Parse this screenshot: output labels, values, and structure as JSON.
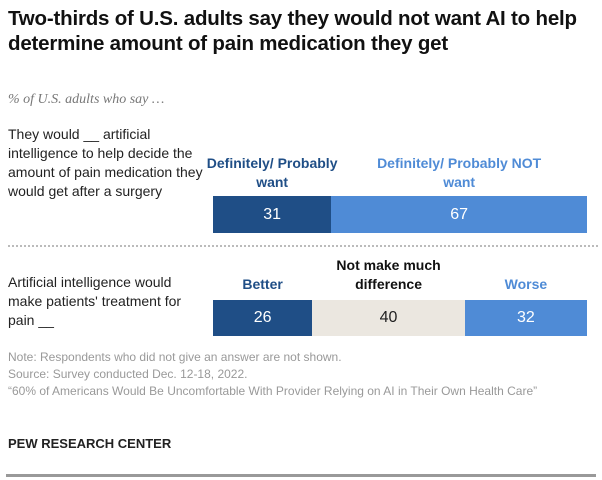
{
  "title": "Two-thirds of U.S. adults say they would not want AI to help determine amount of pain medication they get",
  "subtitle": "% of U.S. adults who say …",
  "colors": {
    "dark": "#1f4e86",
    "light": "#4f8bd6",
    "neutral": "#ebe7e0"
  },
  "chart_data": [
    {
      "type": "bar",
      "orientation": "horizontal-stacked",
      "row_label": "They would __ artificial intelligence to help decide the amount of pain medication they would get after a surgery",
      "categories": [
        "Definitely/ Probably want",
        "Definitely/ Probably NOT want"
      ],
      "values": [
        31,
        67
      ],
      "category_colors": [
        "#1f4e86",
        "#4f8bd6"
      ],
      "label_colors": [
        "#1f4e86",
        "#4f8bd6"
      ],
      "value_colors": [
        "#ffffff",
        "#ffffff"
      ]
    },
    {
      "type": "bar",
      "orientation": "horizontal-stacked",
      "row_label": "Artificial intelligence would make patients' treatment for pain __",
      "categories": [
        "Better",
        "Not make much difference",
        "Worse"
      ],
      "values": [
        26,
        40,
        32
      ],
      "category_colors": [
        "#1f4e86",
        "#ebe7e0",
        "#4f8bd6"
      ],
      "label_colors": [
        "#1f4e86",
        "#111111",
        "#4f8bd6"
      ],
      "value_colors": [
        "#ffffff",
        "#222222",
        "#ffffff"
      ]
    }
  ],
  "notes": {
    "note": "Note: Respondents who did not give an answer are not shown.",
    "source": "Source: Survey conducted Dec. 12-18, 2022.",
    "report": "“60% of Americans Would Be Uncomfortable With Provider Relying on AI in Their Own Health Care”"
  },
  "brand": "PEW RESEARCH CENTER"
}
